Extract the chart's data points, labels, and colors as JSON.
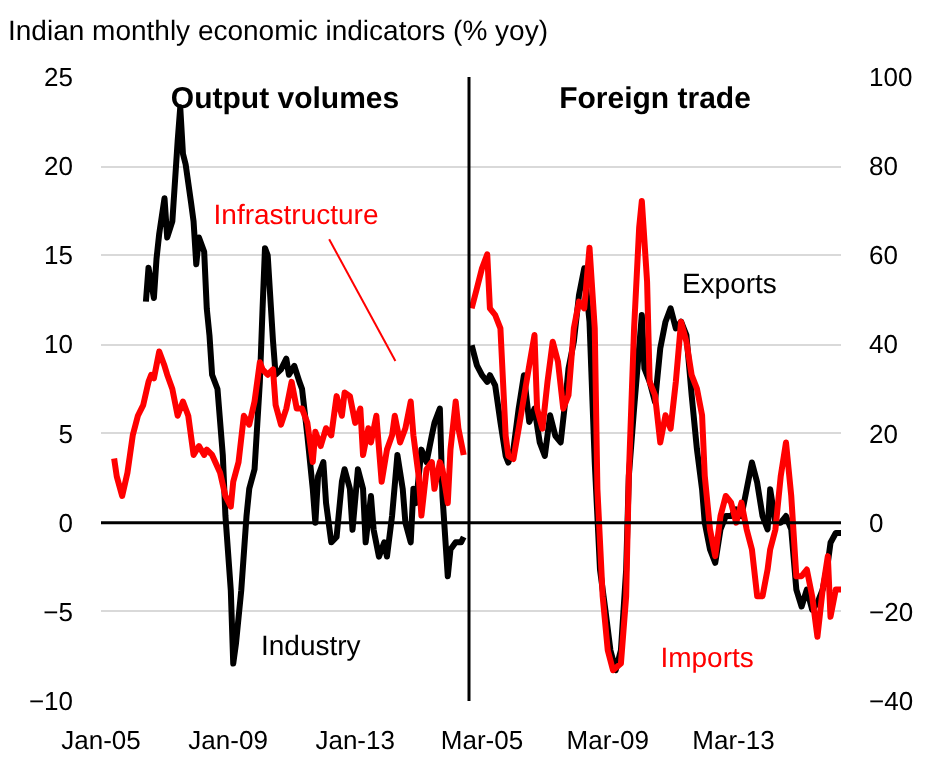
{
  "chart_data": [
    {
      "type": "line",
      "title": "Indian monthly economic indicators (% yoy)",
      "subtitle": "Output volumes",
      "xlim": [
        "2005-01",
        "2016-08"
      ],
      "xticks": [
        {
          "value": "2005-01",
          "label": "Jan-05"
        },
        {
          "value": "2009-01",
          "label": "Jan-09"
        },
        {
          "value": "2013-01",
          "label": "Jan-13"
        }
      ],
      "ylim": [
        -10,
        25
      ],
      "yticks": [
        -10,
        -5,
        0,
        5,
        10,
        15,
        20,
        25
      ],
      "grid": "y",
      "ref_lines": [
        {
          "axis": "y",
          "value": 0,
          "color": "#000000"
        }
      ],
      "series": [
        {
          "name": "Industry",
          "color": "#000000",
          "x": [
            "2006-06",
            "2006-07",
            "2006-09",
            "2006-10",
            "2006-11",
            "2007-01",
            "2007-02",
            "2007-04",
            "2007-06",
            "2007-07",
            "2007-08",
            "2007-09",
            "2007-11",
            "2007-12",
            "2008-01",
            "2008-02",
            "2008-04",
            "2008-05",
            "2008-06",
            "2008-07",
            "2008-09",
            "2008-11",
            "2008-12",
            "2009-02",
            "2009-03",
            "2009-04",
            "2009-06",
            "2009-08",
            "2009-09",
            "2009-11",
            "2010-01",
            "2010-02",
            "2010-03",
            "2010-04",
            "2010-06",
            "2010-07",
            "2010-09",
            "2010-11",
            "2010-12",
            "2011-02",
            "2011-04",
            "2011-05",
            "2011-07",
            "2011-09",
            "2011-10",
            "2011-11",
            "2012-01",
            "2012-02",
            "2012-04",
            "2012-06",
            "2012-08",
            "2012-09",
            "2012-11",
            "2012-12",
            "2013-02",
            "2013-04",
            "2013-05",
            "2013-07",
            "2013-08",
            "2013-10",
            "2013-12",
            "2014-01",
            "2014-03",
            "2014-05",
            "2014-07",
            "2014-08",
            "2014-10",
            "2014-11",
            "2014-12",
            "2015-02",
            "2015-04",
            "2015-06",
            "2015-07",
            "2015-09",
            "2015-10",
            "2015-12",
            "2016-01",
            "2016-03",
            "2016-05",
            "2016-06"
          ],
          "values": [
            12.4,
            14.3,
            12.6,
            14.8,
            16.2,
            18.2,
            16,
            16.9,
            21.4,
            23.3,
            20.7,
            20.1,
            18,
            16.9,
            14.5,
            16,
            15.2,
            12,
            10.5,
            8.3,
            7.5,
            3.8,
            0.4,
            -3.8,
            -7.9,
            -6.8,
            -3.8,
            0.4,
            1.9,
            3.0,
            7.9,
            12,
            15.4,
            15,
            10.2,
            8.3,
            8.6,
            9.2,
            8.3,
            8.8,
            7.9,
            7.5,
            4.9,
            1.9,
            0,
            2.6,
            3.4,
            1.1,
            -1.1,
            -0.8,
            2.3,
            3.0,
            1.9,
            -0.4,
            3.0,
            1.9,
            -1.1,
            1.5,
            -0.4,
            -1.9,
            -1.1,
            -1.9,
            0.4,
            3.8,
            1.9,
            0,
            -1.1,
            1.9,
            1.1,
            4.1,
            3.4,
            4.9,
            5.6,
            6.4,
            1.5,
            -3.0,
            -1.5,
            -1.1,
            -1.1,
            -0.8
          ]
        },
        {
          "name": "Infrastructure",
          "color": "#ff0000",
          "x": [
            "2005-06",
            "2005-07",
            "2005-09",
            "2005-11",
            "2006-01",
            "2006-03",
            "2006-05",
            "2006-07",
            "2006-08",
            "2006-09",
            "2006-11",
            "2007-01",
            "2007-02",
            "2007-04",
            "2007-06",
            "2007-08",
            "2007-10",
            "2007-12",
            "2008-02",
            "2008-04",
            "2008-05",
            "2008-07",
            "2008-10",
            "2008-12",
            "2009-02",
            "2009-03",
            "2009-05",
            "2009-07",
            "2009-09",
            "2009-11",
            "2010-01",
            "2010-02",
            "2010-04",
            "2010-06",
            "2010-07",
            "2010-09",
            "2010-11",
            "2011-01",
            "2011-03",
            "2011-05",
            "2011-07",
            "2011-09",
            "2011-10",
            "2011-12",
            "2012-02",
            "2012-04",
            "2012-06",
            "2012-08",
            "2012-09",
            "2012-11",
            "2013-01",
            "2013-03",
            "2013-04",
            "2013-06",
            "2013-07",
            "2013-09",
            "2013-11",
            "2014-01",
            "2014-03",
            "2014-04",
            "2014-06",
            "2014-08",
            "2014-10",
            "2014-11",
            "2015-01",
            "2015-02",
            "2015-04",
            "2015-06",
            "2015-07",
            "2015-09",
            "2015-10",
            "2015-12",
            "2016-01",
            "2016-03",
            "2016-04",
            "2016-06"
          ],
          "values": [
            3.6,
            2.6,
            1.5,
            2.8,
            4.9,
            6.0,
            6.6,
            7.9,
            8.3,
            8.1,
            9.6,
            8.8,
            8.3,
            7.5,
            6.0,
            6.8,
            6.0,
            3.8,
            4.3,
            3.8,
            4.1,
            3.8,
            2.8,
            1.5,
            0.9,
            2.3,
            3.4,
            6.0,
            5.5,
            6.8,
            9.0,
            8.6,
            8.3,
            8.6,
            6.6,
            5.5,
            6.4,
            7.9,
            6.4,
            6.4,
            5.6,
            3.4,
            5.1,
            4.3,
            5.3,
            4.9,
            7.1,
            6.0,
            7.3,
            7.1,
            5.6,
            6.4,
            3.8,
            5.3,
            4.5,
            6.0,
            2.3,
            4.1,
            4.9,
            6.0,
            4.5,
            5.3,
            6.8,
            4.9,
            2.6,
            0.4,
            3.0,
            3.4,
            1.9,
            3.4,
            3.0,
            1.1,
            4.1,
            6.8,
            5.3,
            3.8
          ]
        }
      ]
    },
    {
      "type": "line",
      "subtitle": "Foreign trade",
      "xlim": [
        "2004-10",
        "2016-08"
      ],
      "xticks": [
        {
          "value": "2005-03",
          "label": "Mar-05"
        },
        {
          "value": "2009-03",
          "label": "Mar-09"
        },
        {
          "value": "2013-03",
          "label": "Mar-13"
        }
      ],
      "ylim": [
        -40,
        100
      ],
      "yticks": [
        -40,
        -20,
        0,
        20,
        40,
        60,
        80,
        100
      ],
      "grid": "y",
      "ref_lines": [
        {
          "axis": "y",
          "value": 0,
          "color": "#000000"
        }
      ],
      "series": [
        {
          "name": "Exports",
          "color": "#000000",
          "x": [
            "2004-11",
            "2005-01",
            "2005-03",
            "2005-05",
            "2005-06",
            "2005-08",
            "2005-10",
            "2005-12",
            "2006-01",
            "2006-03",
            "2006-05",
            "2006-07",
            "2006-09",
            "2006-11",
            "2007-01",
            "2007-03",
            "2007-05",
            "2007-07",
            "2007-09",
            "2007-11",
            "2007-12",
            "2008-02",
            "2008-04",
            "2008-06",
            "2008-08",
            "2008-10",
            "2008-12",
            "2009-02",
            "2009-04",
            "2009-06",
            "2009-08",
            "2009-10",
            "2009-11",
            "2010-01",
            "2010-04",
            "2010-05",
            "2010-07",
            "2010-09",
            "2010-11",
            "2011-01",
            "2011-03",
            "2011-05",
            "2011-07",
            "2011-09",
            "2011-11",
            "2012-01",
            "2012-03",
            "2012-04",
            "2012-06",
            "2012-08",
            "2012-10",
            "2012-12",
            "2013-02",
            "2013-04",
            "2013-06",
            "2013-08",
            "2013-10",
            "2013-12",
            "2014-02",
            "2014-04",
            "2014-05",
            "2014-07",
            "2014-09",
            "2014-11",
            "2015-01",
            "2015-03",
            "2015-05",
            "2015-07",
            "2015-09",
            "2015-11",
            "2016-01",
            "2016-03",
            "2016-04",
            "2016-06",
            "2016-08"
          ],
          "values": [
            39.8,
            35.3,
            33.1,
            31.6,
            33.1,
            30.8,
            22.6,
            15,
            13.5,
            16.5,
            25.6,
            33.1,
            22.6,
            25.6,
            18,
            15,
            24.1,
            19.5,
            18,
            28.6,
            34.6,
            40.6,
            51.1,
            57.1,
            45.1,
            13.5,
            -10.5,
            -19.5,
            -28.6,
            -33.1,
            -28.6,
            -10.5,
            10.5,
            25.6,
            46.6,
            34.6,
            31.6,
            27.1,
            39.1,
            45.1,
            48.1,
            43.6,
            45.1,
            42.1,
            28.6,
            16.5,
            7.5,
            0,
            -6.0,
            -9.0,
            -1.5,
            1.5,
            1.5,
            3.0,
            1.5,
            7.5,
            13.5,
            9.0,
            1.5,
            -1.5,
            7.5,
            0,
            0,
            1.5,
            -1.5,
            -15.0,
            -18.8,
            -15,
            -19.5,
            -18,
            -15,
            -9,
            -4.5,
            -2.3,
            -2.3
          ]
        },
        {
          "name": "Imports",
          "color": "#ff0000",
          "x": [
            "2004-11",
            "2005-01",
            "2005-03",
            "2005-05",
            "2005-06",
            "2005-08",
            "2005-10",
            "2005-12",
            "2006-01",
            "2006-03",
            "2006-05",
            "2006-09",
            "2006-11",
            "2006-12",
            "2007-02",
            "2007-04",
            "2007-06",
            "2007-08",
            "2007-10",
            "2007-12",
            "2008-02",
            "2008-04",
            "2008-06",
            "2008-08",
            "2008-10",
            "2008-11",
            "2009-01",
            "2009-03",
            "2009-05",
            "2009-08",
            "2009-10",
            "2009-11",
            "2010-01",
            "2010-03",
            "2010-04",
            "2010-06",
            "2010-07",
            "2010-09",
            "2010-11",
            "2011-01",
            "2011-03",
            "2011-05",
            "2011-07",
            "2011-09",
            "2011-11",
            "2012-01",
            "2012-03",
            "2012-04",
            "2012-06",
            "2012-08",
            "2012-10",
            "2012-12",
            "2013-02",
            "2013-04",
            "2013-06",
            "2013-08",
            "2013-10",
            "2013-12",
            "2014-02",
            "2014-04",
            "2014-05",
            "2014-07",
            "2014-09",
            "2014-11",
            "2015-01",
            "2015-03",
            "2015-05",
            "2015-07",
            "2015-09",
            "2015-11",
            "2016-01",
            "2016-03",
            "2016-04",
            "2016-06",
            "2016-08"
          ],
          "values": [
            48.1,
            52.6,
            57.1,
            60.2,
            48.1,
            46.6,
            43.6,
            19.5,
            15,
            14.3,
            21.1,
            35.3,
            42.1,
            25.6,
            21.1,
            31.6,
            40.6,
            36.1,
            25.6,
            28.6,
            43.6,
            49.6,
            48.1,
            61.7,
            43.6,
            7.5,
            -16.5,
            -28.6,
            -33.1,
            -31.6,
            -16.5,
            10.5,
            43.6,
            66.2,
            72.2,
            54.1,
            31.6,
            28.6,
            18,
            24.1,
            21.1,
            31.6,
            45.1,
            40.6,
            33.1,
            30.1,
            24.1,
            10.5,
            -1.5,
            -7.5,
            1.5,
            6.0,
            4.5,
            0,
            4.5,
            -1.5,
            -6.0,
            -16.5,
            -16.5,
            -10.5,
            -6.0,
            -1.5,
            10.5,
            18,
            6.0,
            -12,
            -12,
            -10.5,
            -16.5,
            -25.6,
            -15,
            -7.5,
            -21.1,
            -15,
            -15
          ]
        }
      ]
    }
  ]
}
